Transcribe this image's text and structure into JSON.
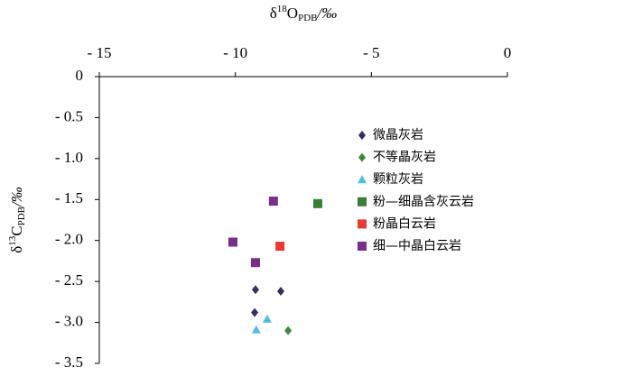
{
  "chart_data": {
    "type": "scatter",
    "x_label": {
      "symbol": "δ",
      "superscript": "18",
      "base": "O",
      "subscript": "PDB",
      "unit": "/‰"
    },
    "y_label": {
      "symbol": "δ",
      "superscript": "13",
      "base": "C",
      "subscript": "PDB",
      "unit": "/‰"
    },
    "xlim": [
      -15,
      0
    ],
    "xticks": [
      {
        "value": -15,
        "label": "- 15"
      },
      {
        "value": -10,
        "label": "- 10"
      },
      {
        "value": -5,
        "label": "- 5"
      },
      0
    ],
    "ylim": [
      -3.5,
      0
    ],
    "yticks": [
      0,
      {
        "value": -0.5,
        "label": "- 0.5"
      },
      {
        "value": -1.0,
        "label": "- 1.0"
      },
      {
        "value": -1.5,
        "label": "- 1.5"
      },
      {
        "value": -2.0,
        "label": "- 2.0"
      },
      {
        "value": -2.5,
        "label": "- 2.5"
      },
      {
        "value": -3.0,
        "label": "- 3.0"
      },
      {
        "value": -3.5,
        "label": "- 3.5"
      }
    ],
    "series": [
      {
        "name": "微晶灰岩",
        "color": "#3b2b5e",
        "marker": "diamond",
        "x": [
          -9.26,
          -8.33,
          -9.29
        ],
        "y": [
          -2.6,
          -2.62,
          -2.88
        ]
      },
      {
        "name": "不等晶灰岩",
        "color": "#3f8a3a",
        "marker": "diamond",
        "x": [
          -8.06
        ],
        "y": [
          -3.1
        ]
      },
      {
        "name": "颗粒灰岩",
        "color": "#4bbde6",
        "marker": "triangle",
        "x": [
          -8.83,
          -9.23
        ],
        "y": [
          -2.96,
          -3.09
        ]
      },
      {
        "name": "粉—细晶含灰云岩",
        "color": "#3a7d3a",
        "marker": "square",
        "x": [
          -6.97
        ],
        "y": [
          -1.55
        ]
      },
      {
        "name": "粉晶白云岩",
        "color": "#e83a32",
        "marker": "square",
        "x": [
          -8.36
        ],
        "y": [
          -2.07
        ]
      },
      {
        "name": "细—中晶白云岩",
        "color": "#7b2d8b",
        "marker": "square",
        "x": [
          -8.6,
          -10.09,
          -9.26
        ],
        "y": [
          -1.52,
          -2.02,
          -2.27
        ]
      }
    ]
  }
}
